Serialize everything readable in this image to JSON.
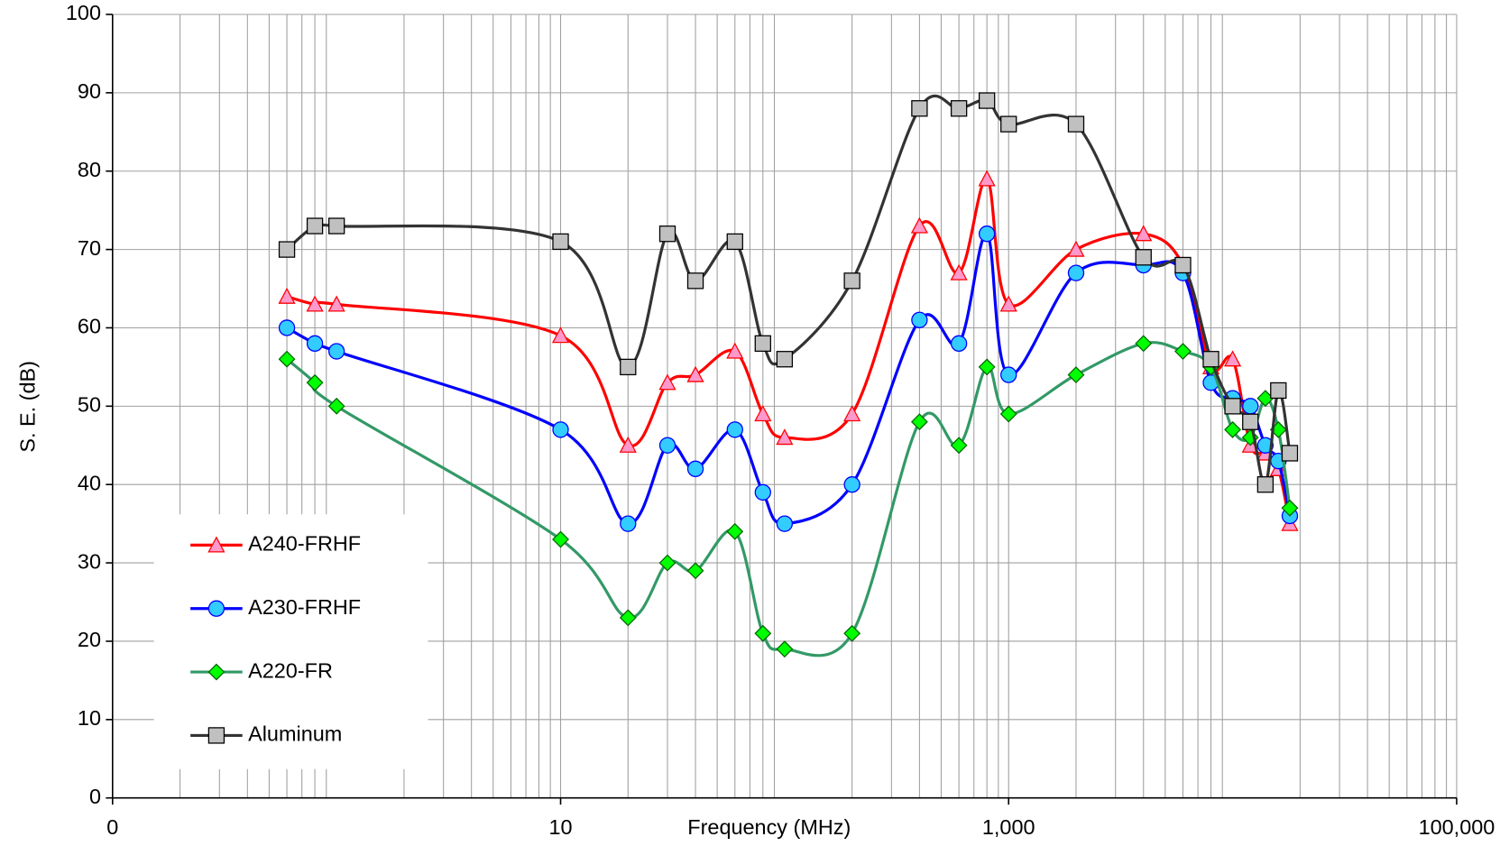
{
  "chart_data": {
    "type": "line",
    "x_label": "Frequency (MHz)",
    "y_label": "S. E. (dB)",
    "x_scale": "log",
    "xlim": [
      0.1,
      100000
    ],
    "xticks": [
      {
        "value": 0.1,
        "label": "0"
      },
      10,
      {
        "value": 1000,
        "label": "1,000"
      },
      {
        "value": 100000,
        "label": "100,000"
      }
    ],
    "ylim": [
      0,
      100
    ],
    "yticks": [
      0,
      10,
      20,
      30,
      40,
      50,
      60,
      70,
      80,
      90,
      100
    ],
    "grid": true,
    "legend": "lower left",
    "x": [
      0.6,
      0.8,
      1,
      10,
      20,
      30,
      40,
      60,
      80,
      100,
      200,
      400,
      600,
      800,
      1000,
      2000,
      4000,
      6000,
      8000,
      10000,
      12000,
      14000,
      16000,
      18000
    ],
    "series": [
      {
        "name": "A240-FRHF",
        "color": "#ff0000",
        "marker": "triangle",
        "marker_color": "#ff99cc",
        "values": [
          64,
          63,
          63,
          59,
          45,
          53,
          54,
          57,
          49,
          46,
          49,
          73,
          67,
          79,
          63,
          70,
          72,
          68,
          55,
          56,
          45,
          44,
          42,
          35
        ]
      },
      {
        "name": "A230-FRHF",
        "color": "#0000ff",
        "marker": "circle",
        "marker_color": "#33ccff",
        "values": [
          60,
          58,
          57,
          47,
          35,
          45,
          42,
          47,
          39,
          35,
          40,
          61,
          58,
          72,
          54,
          67,
          68,
          67,
          53,
          51,
          50,
          45,
          43,
          36
        ]
      },
      {
        "name": "A220-FR",
        "color": "#339966",
        "marker": "diamond",
        "marker_color": "#00ff00",
        "values": [
          56,
          53,
          50,
          33,
          23,
          30,
          29,
          34,
          21,
          19,
          21,
          48,
          45,
          55,
          49,
          54,
          58,
          57,
          55,
          47,
          46,
          51,
          47,
          37
        ]
      },
      {
        "name": "Aluminum",
        "color": "#333333",
        "marker": "square",
        "marker_color": "#c0c0c0",
        "values": [
          70,
          73,
          73,
          71,
          55,
          72,
          66,
          71,
          58,
          56,
          66,
          88,
          88,
          89,
          86,
          86,
          69,
          68,
          56,
          50,
          48,
          40,
          52,
          44
        ]
      }
    ]
  }
}
